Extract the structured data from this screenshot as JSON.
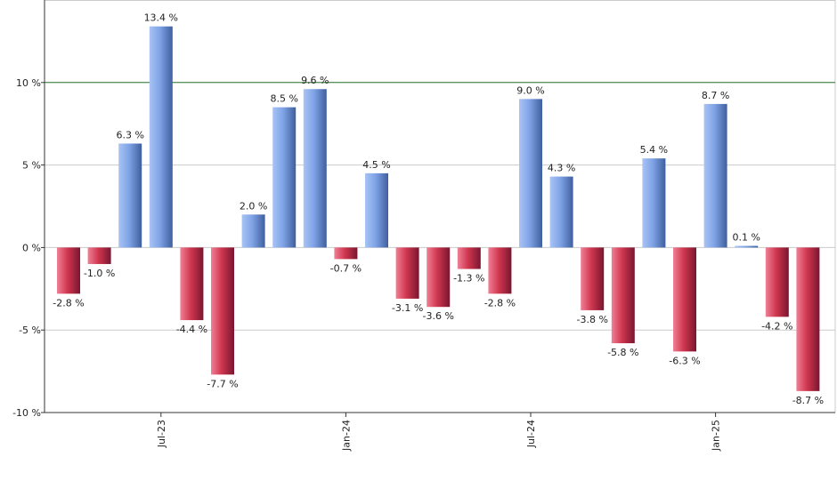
{
  "chart_data": {
    "type": "bar",
    "title": "",
    "xlabel": "",
    "ylabel": "",
    "ylim": [
      -10,
      15
    ],
    "grid": true,
    "y_ticks": [
      -10,
      -5,
      0,
      5,
      10
    ],
    "y_tick_labels": [
      "-10 %",
      "-5 %",
      "0 %",
      "5 %",
      "10 %"
    ],
    "reference_line": {
      "value": 10,
      "color": "#2e7d32"
    },
    "x_tick_labels": [
      {
        "label": "Jul-23",
        "index": 3
      },
      {
        "label": "Jan-24",
        "index": 9
      },
      {
        "label": "Jul-24",
        "index": 15
      },
      {
        "label": "Jan-25",
        "index": 21
      }
    ],
    "values": [
      -2.8,
      -1.0,
      6.3,
      13.4,
      -4.4,
      -7.7,
      2.0,
      8.5,
      9.6,
      -0.7,
      4.5,
      -3.1,
      -3.6,
      -1.3,
      -2.8,
      9.0,
      4.3,
      -3.8,
      -5.8,
      5.4,
      -6.3,
      8.7,
      0.1,
      -4.2,
      -8.7
    ],
    "labels": [
      "-2.8 %",
      "-1.0 %",
      "6.3 %",
      "13.4 %",
      "-4.4 %",
      "-7.7 %",
      "2.0 %",
      "8.5 %",
      "9.6 %",
      "-0.7 %",
      "4.5 %",
      "-3.1 %",
      "-3.6 %",
      "-1.3 %",
      "-2.8 %",
      "9.0 %",
      "4.3 %",
      "-3.8 %",
      "-5.8 %",
      "5.4 %",
      "-6.3 %",
      "8.7 %",
      "0.1 %",
      "-4.2 %",
      "-8.7 %"
    ],
    "colors": {
      "positive": "#7a9fe0",
      "negative": "#c8334f",
      "grid": "#cccccc",
      "axis": "#333333"
    }
  }
}
